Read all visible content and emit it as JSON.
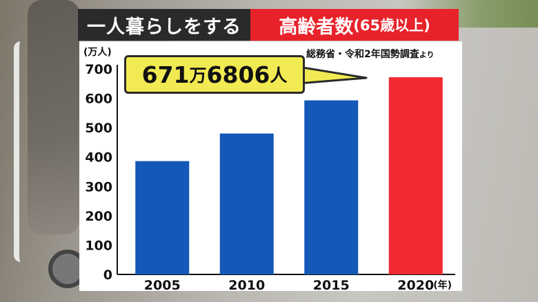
{
  "title": {
    "left": "一人暮らしをする",
    "right_main": "高齢者数",
    "right_paren": "(65歳以上)"
  },
  "source": {
    "text": "総務省・令和2年国勢調査",
    "suffix": "より"
  },
  "callout": {
    "main": "671",
    "unit1": "万",
    "sub": "6806",
    "unit2": "人"
  },
  "colors": {
    "bar_blue": "#1458b8",
    "bar_red": "#f22a33",
    "title_dark": "#2a2a2a",
    "title_red": "#e8222b",
    "callout_fill": "#f2ea52"
  },
  "chart_data": {
    "type": "bar",
    "ylabel": "(万人)",
    "xlabel": "(年)",
    "ylim": [
      0,
      700
    ],
    "yticks": [
      0,
      100,
      200,
      300,
      400,
      500,
      600,
      700
    ],
    "grid": false,
    "categories": [
      "2005",
      "2010",
      "2015",
      "2020"
    ],
    "values": [
      386,
      480,
      593,
      671.68
    ],
    "highlight_index": 3
  }
}
